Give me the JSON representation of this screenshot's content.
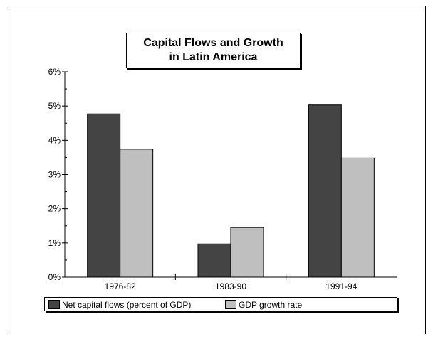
{
  "chart_data": {
    "type": "bar",
    "title": [
      "Capital Flows and Growth",
      "in Latin America"
    ],
    "categories": [
      "1976-82",
      "1983-90",
      "1991-94"
    ],
    "series": [
      {
        "name": "Net capital flows (percent of GDP)",
        "values": [
          4.77,
          0.97,
          5.03
        ],
        "color": "#444444"
      },
      {
        "name": "GDP growth rate",
        "values": [
          3.74,
          1.45,
          3.48
        ],
        "color": "#bfbfbf"
      }
    ],
    "ylim": [
      0,
      6
    ],
    "yticks": [
      "0%",
      "1%",
      "2%",
      "3%",
      "4%",
      "5%",
      "6%"
    ],
    "grid": false,
    "legend": "bottom"
  }
}
